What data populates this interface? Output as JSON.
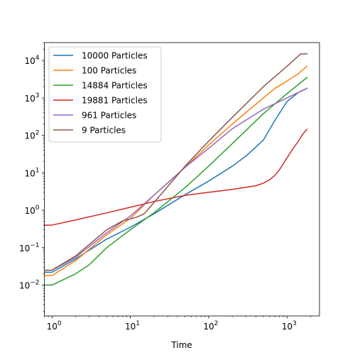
{
  "chart_data": {
    "type": "line",
    "title": "",
    "xlabel": "Time",
    "ylabel": "",
    "xscale": "log",
    "yscale": "log",
    "xlim": [
      0.8,
      2600
    ],
    "ylim": [
      0.0015,
      30000
    ],
    "grid": false,
    "legend_position": "top-left",
    "x_ticks": [
      {
        "value": 1,
        "base": "10",
        "exp": "0"
      },
      {
        "value": 10,
        "base": "10",
        "exp": "1"
      },
      {
        "value": 100,
        "base": "10",
        "exp": "2"
      },
      {
        "value": 1000,
        "base": "10",
        "exp": "3"
      }
    ],
    "y_ticks": [
      {
        "value": 0.01,
        "base": "10",
        "exp": "−2"
      },
      {
        "value": 0.1,
        "base": "10",
        "exp": "−1"
      },
      {
        "value": 1,
        "base": "10",
        "exp": "0"
      },
      {
        "value": 10,
        "base": "10",
        "exp": "1"
      },
      {
        "value": 100,
        "base": "10",
        "exp": "2"
      },
      {
        "value": 1000,
        "base": "10",
        "exp": "3"
      },
      {
        "value": 10000,
        "base": "10",
        "exp": "4"
      }
    ],
    "series": [
      {
        "name": "10000 Particles",
        "color": "#1f77b4",
        "x": [
          0.7,
          1,
          2,
          5,
          10,
          20,
          50,
          100,
          200,
          300,
          500,
          700,
          1000,
          1400,
          1800
        ],
        "y": [
          0.022,
          0.022,
          0.05,
          0.17,
          0.35,
          0.8,
          2.6,
          6,
          15,
          28,
          75,
          250,
          800,
          1400,
          1800
        ]
      },
      {
        "name": "100 Particles",
        "color": "#ff7f0e",
        "x": [
          0.7,
          1,
          2,
          5,
          10,
          20,
          50,
          100,
          200,
          500,
          700,
          1000,
          1400,
          1800
        ],
        "y": [
          0.018,
          0.018,
          0.045,
          0.22,
          0.6,
          2.5,
          14,
          55,
          200,
          1000,
          1800,
          2800,
          4500,
          7000
        ]
      },
      {
        "name": "14884 Particles",
        "color": "#2ca02c",
        "x": [
          0.7,
          1,
          2,
          3,
          5,
          10,
          20,
          50,
          100,
          200,
          500,
          1000,
          1800
        ],
        "y": [
          0.01,
          0.01,
          0.02,
          0.035,
          0.1,
          0.3,
          0.85,
          4,
          15,
          60,
          380,
          1300,
          3500
        ]
      },
      {
        "name": "19881 Particles",
        "color": "#d62728",
        "x": [
          0.7,
          1,
          2,
          5,
          10,
          20,
          50,
          100,
          200,
          400,
          500,
          600,
          700,
          800,
          1000,
          1200,
          1400,
          1600,
          1800
        ],
        "y": [
          0.4,
          0.4,
          0.55,
          0.85,
          1.2,
          1.7,
          2.5,
          3,
          3.6,
          4.5,
          5.3,
          6.5,
          8.5,
          12,
          25,
          45,
          70,
          110,
          145
        ]
      },
      {
        "name": "961 Particles",
        "color": "#9467bd",
        "x": [
          0.7,
          1,
          2,
          5,
          10,
          20,
          50,
          100,
          200,
          500,
          1000,
          1800
        ],
        "y": [
          0.025,
          0.025,
          0.055,
          0.25,
          0.7,
          2.5,
          14,
          45,
          150,
          500,
          1000,
          1800
        ]
      },
      {
        "name": "9 Particles",
        "color": "#8c564b",
        "x": [
          0.7,
          1,
          2,
          5,
          8,
          12,
          15,
          20,
          50,
          100,
          200,
          500,
          1000,
          1500,
          1800
        ],
        "y": [
          0.025,
          0.025,
          0.06,
          0.3,
          0.52,
          0.65,
          0.8,
          1.6,
          15,
          70,
          300,
          2000,
          7000,
          15000,
          15000
        ]
      }
    ]
  }
}
